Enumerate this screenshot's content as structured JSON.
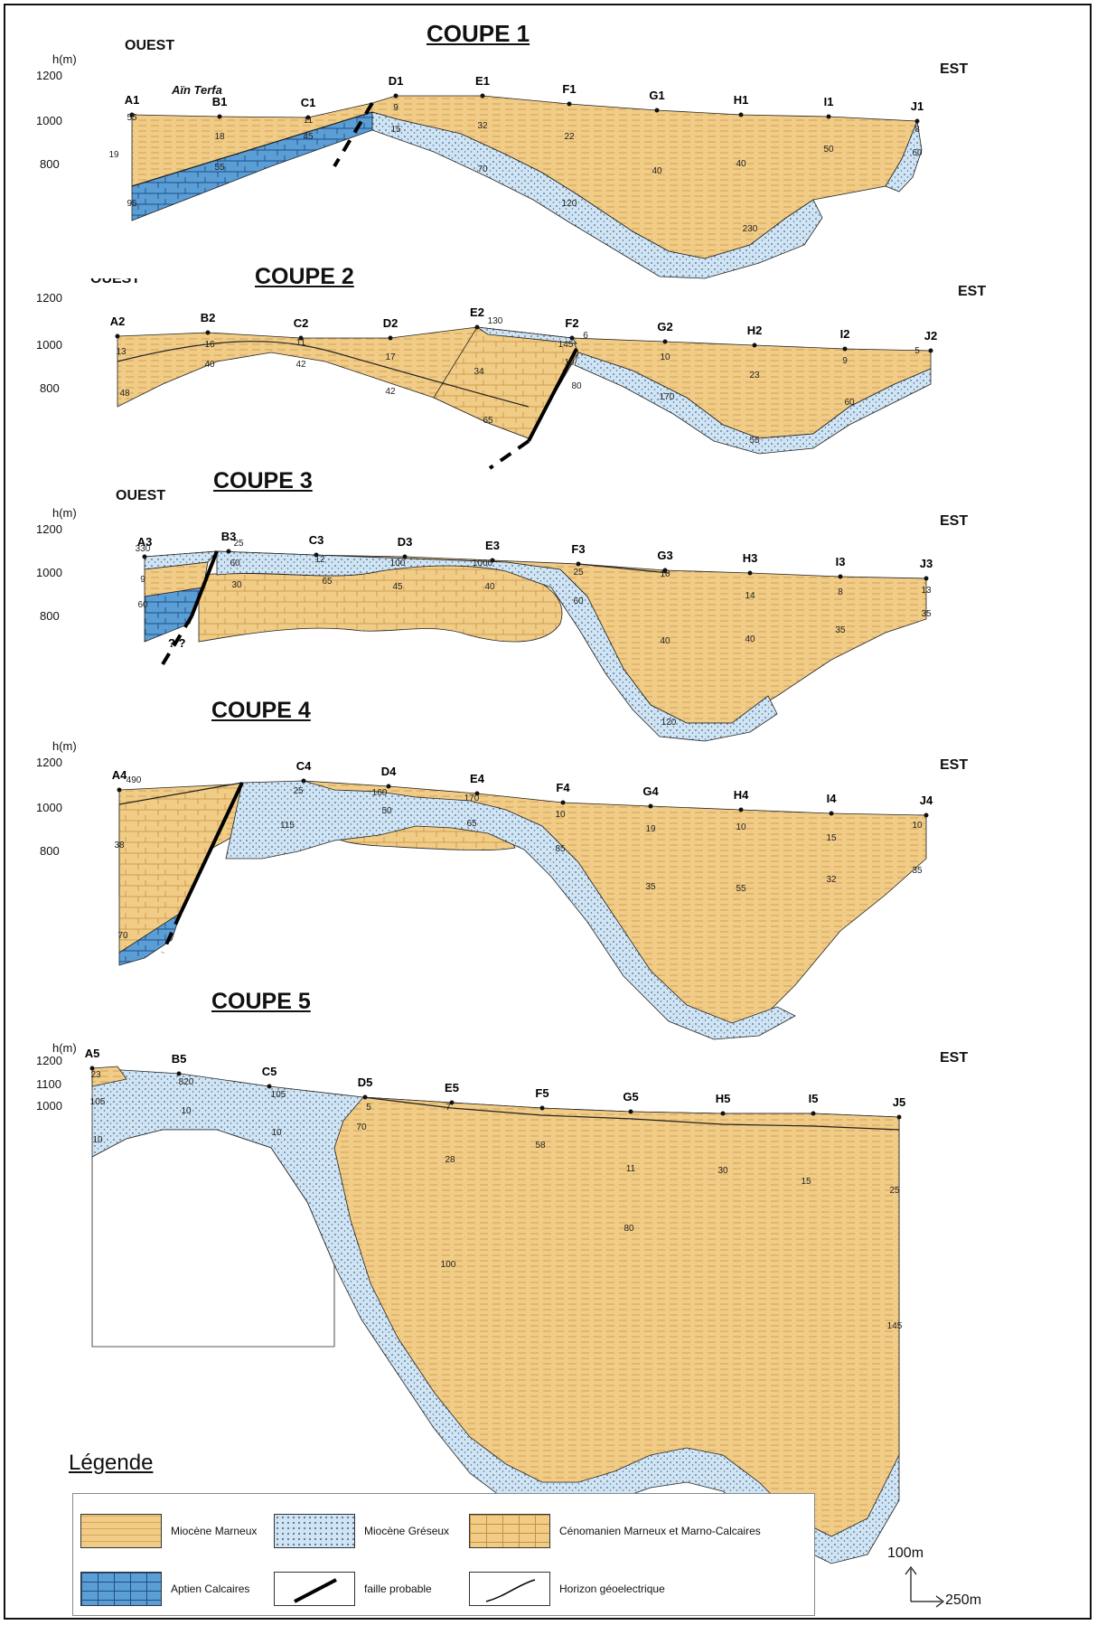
{
  "colors": {
    "miocene_marneux": "#f1cc86",
    "miocene_greseux": "#cfe4f4",
    "cenomanien": "#f1cc86",
    "aptien": "#5b9ed6",
    "outline": "#222222"
  },
  "coupes": [
    {
      "title": "COUPE 1",
      "west": "OUEST",
      "east": "EST",
      "axis_label": "h(m)",
      "elevation_ticks": [
        "1200",
        "1000",
        "800"
      ],
      "place_name": "Aïn Terfa",
      "stations": [
        "A1",
        "B1",
        "C1",
        "D1",
        "E1",
        "F1",
        "G1",
        "H1",
        "I1",
        "J1"
      ],
      "values": [
        "55",
        "18",
        "19",
        "55",
        "95",
        "11",
        "45",
        "9",
        "15",
        "32",
        "70",
        "22",
        "120",
        "40",
        "40",
        "230",
        "50",
        "8",
        "60"
      ]
    },
    {
      "title": "COUPE 2",
      "west": "OUEST",
      "east": "EST",
      "axis_label": "",
      "elevation_ticks": [
        "1200",
        "1000",
        "800"
      ],
      "stations": [
        "A2",
        "B2",
        "C2",
        "D2",
        "E2",
        "F2",
        "G2",
        "H2",
        "I2",
        "J2"
      ],
      "values": [
        "13",
        "16",
        "48",
        "40",
        "11",
        "42",
        "17",
        "42",
        "130",
        "34",
        "65",
        "145",
        "6",
        "10",
        "80",
        "10",
        "170",
        "23",
        "55",
        "9",
        "60",
        "5"
      ]
    },
    {
      "title": "COUPE 3",
      "west": "OUEST",
      "east": "EST",
      "axis_label": "h(m)",
      "elevation_ticks": [
        "1200",
        "1000",
        "800"
      ],
      "fault_question": "? ?",
      "stations": [
        "A3",
        "B3",
        "C3",
        "D3",
        "E3",
        "F3",
        "G3",
        "H3",
        "I3",
        "J3"
      ],
      "values": [
        "330",
        "25",
        "9",
        "60",
        "60",
        "30",
        "12",
        "65",
        "100",
        "45",
        "1000",
        "40",
        "25",
        "60",
        "10",
        "40",
        "14",
        "40",
        "8",
        "35",
        "13",
        "35",
        "120"
      ]
    },
    {
      "title": "COUPE 4",
      "west": "",
      "east": "EST",
      "axis_label": "h(m)",
      "elevation_ticks": [
        "1200",
        "1000",
        "800"
      ],
      "stations": [
        "A4",
        "C4",
        "D4",
        "E4",
        "F4",
        "G4",
        "H4",
        "I4",
        "J4"
      ],
      "values": [
        "490",
        "25",
        "38",
        "115",
        "160",
        "50",
        "170",
        "65",
        "10",
        "85",
        "70",
        "19",
        "35",
        "10",
        "55",
        "15",
        "32",
        "10",
        "35"
      ]
    },
    {
      "title": "COUPE 5",
      "west": "",
      "east": "EST",
      "axis_label": "h(m)",
      "elevation_ticks": [
        "1200",
        "1100",
        "1000"
      ],
      "stations": [
        "A5",
        "B5",
        "C5",
        "D5",
        "E5",
        "F5",
        "G5",
        "H5",
        "I5",
        "J5"
      ],
      "values": [
        "23",
        "105",
        "10",
        "820",
        "10",
        "105",
        "10",
        "5",
        "70",
        "7",
        "28",
        "100",
        "58",
        "11",
        "80",
        "30",
        "15",
        "25",
        "145"
      ]
    }
  ],
  "legend": {
    "title": "Légende",
    "items": [
      {
        "label": "Miocène Marneux",
        "swatch": "marneux"
      },
      {
        "label": "Miocène Gréseux",
        "swatch": "greseux"
      },
      {
        "label": "Cénomanien Marneux et Marno-Calcaires",
        "swatch": "cenomanien"
      },
      {
        "label": "Aptien Calcaires",
        "swatch": "aptien"
      },
      {
        "label": "faille probable",
        "swatch": "fault"
      },
      {
        "label": "Horizon géoelectrique",
        "swatch": "horizon"
      }
    ]
  },
  "scale": {
    "vertical": "100m",
    "horizontal": "250m"
  }
}
